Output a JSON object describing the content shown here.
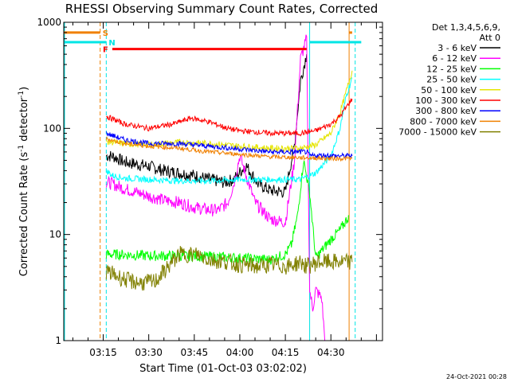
{
  "chart_data": {
    "type": "line",
    "title": "RHESSI Observing Summary Count Rates, Corrected",
    "xlabel": "Start Time (01-Oct-03 03:02:02)",
    "ylabel": "Corrected Count Rate (s⁻¹ detector⁻¹)",
    "ylabel_main": "Corrected Count Rate (s",
    "ylabel_sup1": "-1",
    "ylabel_mid": " detector",
    "ylabel_sup2": "-1",
    "ylabel_end": ")",
    "yscale": "log",
    "ylim": [
      1,
      1000
    ],
    "xlim": [
      "03:02",
      "04:47"
    ],
    "yticks": [
      {
        "v": 1,
        "label": "1"
      },
      {
        "v": 10,
        "label": "10"
      },
      {
        "v": 100,
        "label": "100"
      },
      {
        "v": 1000,
        "label": "1000"
      }
    ],
    "xticks": [
      {
        "t": "03:15",
        "label": "03:15"
      },
      {
        "t": "03:30",
        "label": "03:30"
      },
      {
        "t": "03:45",
        "label": "03:45"
      },
      {
        "t": "04:00",
        "label": "04:00"
      },
      {
        "t": "04:15",
        "label": "04:15"
      },
      {
        "t": "04:30",
        "label": "04:30"
      }
    ],
    "legend_position": "right",
    "legend_header": [
      "Det 1,3,4,5,6,9,",
      "Att 0"
    ],
    "flags": [
      {
        "label": "S",
        "color": "#f08000",
        "y": 800
      },
      {
        "label": "N",
        "color": "#00e5e5",
        "y": 650
      },
      {
        "label": "F",
        "color": "#ff0000",
        "y": 560
      }
    ],
    "series": [
      {
        "name": "3 - 6 keV",
        "color": "#000000",
        "x": [
          "03:16",
          "03:18",
          "03:22",
          "03:26",
          "03:30",
          "03:35",
          "03:40",
          "03:45",
          "03:50",
          "03:55",
          "03:58",
          "04:02",
          "04:06",
          "04:10",
          "04:15",
          "04:18",
          "04:20",
          "04:22"
        ],
        "values": [
          55,
          55,
          48,
          46,
          44,
          40,
          38,
          36,
          33,
          31,
          33,
          45,
          30,
          26,
          25,
          70,
          280,
          500
        ]
      },
      {
        "name": "6 - 12 keV",
        "color": "#ff00ff",
        "x": [
          "03:16",
          "03:18",
          "03:22",
          "03:26",
          "03:30",
          "03:35",
          "03:40",
          "03:45",
          "03:50",
          "03:53",
          "03:56",
          "03:58",
          "04:00",
          "04:03",
          "04:05",
          "04:10",
          "04:15",
          "04:18",
          "04:20",
          "04:22",
          "04:23",
          "04:24",
          "04:25",
          "04:27",
          "04:28"
        ],
        "values": [
          31,
          30,
          27,
          25,
          23,
          21,
          20,
          18,
          17,
          17,
          20,
          30,
          55,
          30,
          20,
          14,
          13,
          50,
          450,
          700,
          3,
          2,
          3,
          2.5,
          1
        ]
      },
      {
        "name": "12 - 25 keV",
        "color": "#00ff00",
        "x": [
          "03:16",
          "03:20",
          "03:30",
          "03:40",
          "03:50",
          "04:00",
          "04:10",
          "04:15",
          "04:17",
          "04:19",
          "04:21",
          "04:23",
          "04:25",
          "04:30",
          "04:33",
          "04:36"
        ],
        "values": [
          6.5,
          6.5,
          6.3,
          6.3,
          6.2,
          6,
          5.8,
          6.5,
          8,
          15,
          50,
          25,
          6,
          9,
          11,
          15
        ]
      },
      {
        "name": "25 - 50 keV",
        "color": "#00ffff",
        "x": [
          "03:16",
          "03:18",
          "03:22",
          "03:30",
          "03:40",
          "03:50",
          "04:00",
          "04:10",
          "04:20",
          "04:25",
          "04:30",
          "04:33",
          "04:35",
          "04:37"
        ],
        "values": [
          40,
          36,
          34,
          33,
          32,
          32,
          33,
          33,
          33,
          38,
          55,
          100,
          200,
          300
        ]
      },
      {
        "name": "50 - 100 keV",
        "color": "#e5e500",
        "x": [
          "03:16",
          "03:22",
          "03:30",
          "03:40",
          "03:50",
          "03:55",
          "04:00",
          "04:10",
          "04:20",
          "04:25",
          "04:30",
          "04:33",
          "04:35",
          "04:37"
        ],
        "values": [
          75,
          72,
          70,
          74,
          72,
          70,
          68,
          65,
          65,
          70,
          90,
          140,
          220,
          350
        ]
      },
      {
        "name": "100 - 300 keV",
        "color": "#ff0000",
        "x": [
          "03:16",
          "03:22",
          "03:30",
          "03:38",
          "03:44",
          "03:50",
          "03:56",
          "04:00",
          "04:10",
          "04:20",
          "04:25",
          "04:30",
          "04:33",
          "04:37"
        ],
        "values": [
          130,
          110,
          100,
          110,
          125,
          115,
          100,
          95,
          90,
          90,
          95,
          110,
          130,
          190
        ]
      },
      {
        "name": "300 - 800 keV",
        "color": "#0000ff",
        "x": [
          "03:16",
          "03:22",
          "03:30",
          "03:40",
          "03:50",
          "04:00",
          "04:10",
          "04:20",
          "04:22",
          "04:23",
          "04:28",
          "04:32",
          "04:35",
          "04:37"
        ],
        "values": [
          90,
          78,
          72,
          72,
          68,
          64,
          60,
          60,
          60,
          55,
          56,
          55,
          55,
          55
        ]
      },
      {
        "name": "800 - 7000 keV",
        "color": "#f08000",
        "x": [
          "03:16",
          "03:22",
          "03:30",
          "03:40",
          "03:50",
          "04:00",
          "04:10",
          "04:20",
          "04:30",
          "04:37"
        ],
        "values": [
          80,
          72,
          68,
          65,
          60,
          57,
          54,
          53,
          52,
          52
        ]
      },
      {
        "name": "7000 - 15000 keV",
        "color": "#808000",
        "x": [
          "03:16",
          "03:20",
          "03:24",
          "03:28",
          "03:32",
          "03:36",
          "03:40",
          "03:46",
          "03:50",
          "03:56",
          "04:00",
          "04:06",
          "04:10",
          "04:16",
          "04:20",
          "04:22",
          "04:26",
          "04:30",
          "04:37"
        ],
        "values": [
          4.5,
          4,
          3.6,
          3.5,
          3.6,
          4.8,
          6.5,
          6.5,
          5.8,
          5.5,
          5.2,
          5,
          5.2,
          5,
          5.5,
          5,
          5.5,
          5.5,
          5.5
        ]
      }
    ]
  },
  "footer": {
    "timestamp": "24-Oct-2021 00:28"
  }
}
